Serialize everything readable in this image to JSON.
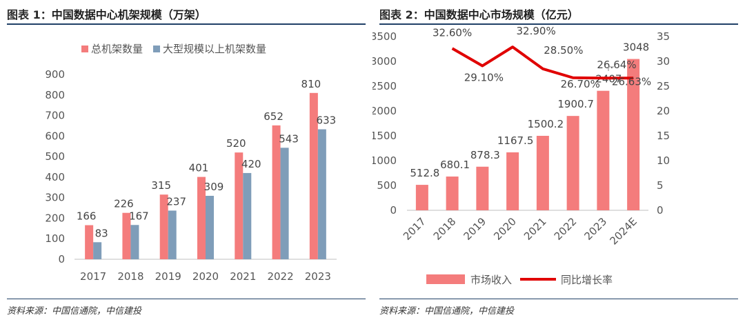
{
  "charts": {
    "left": {
      "fig_label": "图表 1：",
      "title": "中国数据中心机架规模（万架）",
      "source": "资料来源：中国信通院，中信建投"
    },
    "right": {
      "fig_label": "图表 2：",
      "title": "中国数据中心市场规模（亿元）",
      "source": "资料来源：中国信通院，中信建投"
    }
  },
  "chart_data": [
    {
      "type": "bar",
      "title": "中国数据中心机架规模（万架）",
      "categories": [
        "2017",
        "2018",
        "2019",
        "2020",
        "2021",
        "2022",
        "2023"
      ],
      "series": [
        {
          "name": "总机架数量",
          "color": "#f47c7c",
          "values": [
            166,
            226,
            315,
            401,
            520,
            652,
            810
          ]
        },
        {
          "name": "大型规模以上机架数量",
          "color": "#7f9db9",
          "values": [
            83,
            167,
            237,
            309,
            420,
            543,
            633
          ]
        }
      ],
      "yticks": [
        "0",
        "100",
        "200",
        "300",
        "400",
        "500",
        "600",
        "700",
        "800",
        "900"
      ],
      "ylim": [
        0,
        900
      ],
      "legend": "top",
      "grid": false
    },
    {
      "type": "bar",
      "title": "中国数据中心市场规模（亿元）",
      "categories": [
        "2017",
        "2018",
        "2019",
        "2020",
        "2021",
        "2022",
        "2023",
        "2024E"
      ],
      "series": [
        {
          "name": "市场收入",
          "type": "bar",
          "axis": "left",
          "color": "#f47c7c",
          "values": [
            512.8,
            680.1,
            878.3,
            1167.5,
            1500.2,
            1900.7,
            2407,
            3048
          ],
          "labels": [
            "512.8",
            "680.1",
            "878.3",
            "1167.5",
            "1500.2",
            "1900.7",
            "2407",
            "3048"
          ]
        },
        {
          "name": "同比增长率",
          "type": "line",
          "axis": "right",
          "color": "#e00000",
          "values": [
            null,
            32.6,
            29.1,
            32.9,
            28.5,
            26.7,
            26.64,
            26.63
          ],
          "labels": [
            null,
            "32.60%",
            "29.10%",
            "32.90%",
            "28.50%",
            "26.70%",
            "26.64%",
            "26.63%"
          ]
        }
      ],
      "yticks_left": [
        "0",
        "500",
        "1000",
        "1500",
        "2000",
        "2500",
        "3000",
        "3500"
      ],
      "ylim_left": [
        0,
        3500
      ],
      "yticks_right": [
        "0",
        "5",
        "10",
        "15",
        "20",
        "25",
        "30",
        "35"
      ],
      "ylim_right": [
        0,
        35
      ],
      "legend": "bottom",
      "grid": false
    }
  ]
}
